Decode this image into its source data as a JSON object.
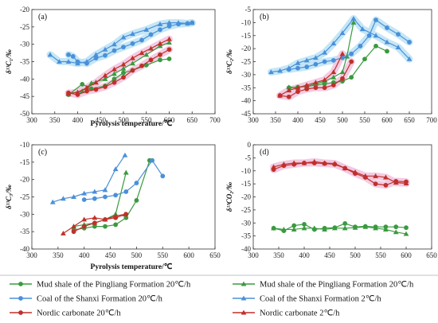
{
  "colors": {
    "green": "#3a9a3f",
    "blue": "#4a90d9",
    "red": "#c0302a",
    "blue_halo": "#bfe3f5",
    "red_halo": "#f2c6e0"
  },
  "legend": [
    {
      "label": "Mud shale of the Pingliang Formation 20℃/h",
      "color": "green",
      "marker": "circle"
    },
    {
      "label": "Mud shale of the Pingliang Formation 20℃/h",
      "color": "green",
      "marker": "triangle"
    },
    {
      "label": "Coal of the Shanxi Formation 20℃/h",
      "color": "blue",
      "marker": "circle"
    },
    {
      "label": "Coal of the Shanxi Formation 2℃/h",
      "color": "blue",
      "marker": "triangle"
    },
    {
      "label": "Nordic carbonate 20℃/h",
      "color": "red",
      "marker": "circle"
    },
    {
      "label": "Nordic carbonate 2℃/h",
      "color": "red",
      "marker": "triangle"
    }
  ],
  "chart_data": [
    {
      "type": "line",
      "panel_label": "(a)",
      "xlabel": "Pyrolysis temperature/℃",
      "ylabel": "δ¹³C₁/‰",
      "xlim": [
        300,
        700
      ],
      "ylim": [
        -50,
        -20
      ],
      "xticks": [
        300,
        350,
        400,
        450,
        500,
        550,
        600,
        650,
        700
      ],
      "yticks": [
        -50,
        -45,
        -40,
        -35,
        -30,
        -25,
        -20
      ],
      "series": [
        {
          "color": "green",
          "marker": "circle",
          "halo": false,
          "x": [
            380,
            410,
            430,
            460,
            480,
            500,
            520,
            550,
            580,
            600
          ],
          "y": [
            -44.5,
            -41.5,
            -42.8,
            -42.0,
            -40.0,
            -38.2,
            -37.5,
            -36.0,
            -34.5,
            -34.2
          ]
        },
        {
          "color": "green",
          "marker": "triangle",
          "halo": false,
          "x": [
            380,
            410,
            430,
            460,
            480,
            500,
            520,
            550,
            580,
            600
          ],
          "y": [
            -44.2,
            -43.5,
            -41.2,
            -40.0,
            -38.5,
            -37.0,
            -35.5,
            -33.0,
            -30.5,
            -29.5
          ]
        },
        {
          "color": "blue",
          "marker": "circle",
          "halo": true,
          "x": [
            380,
            390,
            400,
            420,
            440,
            460,
            480,
            500,
            520,
            540,
            560,
            580,
            600,
            620,
            640,
            650
          ],
          "y": [
            -33.0,
            -33.5,
            -35.0,
            -35.5,
            -34.0,
            -33.2,
            -31.8,
            -30.8,
            -29.8,
            -28.8,
            -27.2,
            -25.8,
            -24.8,
            -24.2,
            -24.0,
            -23.8
          ]
        },
        {
          "color": "blue",
          "marker": "triangle",
          "halo": true,
          "x": [
            340,
            360,
            380,
            400,
            420,
            440,
            460,
            480,
            500,
            520,
            550,
            580,
            600,
            620,
            640,
            650
          ],
          "y": [
            -33.0,
            -35.0,
            -35.0,
            -35.5,
            -35.0,
            -33.0,
            -31.5,
            -30.0,
            -28.0,
            -27.0,
            -25.8,
            -24.2,
            -23.8,
            -23.8,
            -24.0,
            -23.8
          ]
        },
        {
          "color": "red",
          "marker": "circle",
          "halo": true,
          "x": [
            380,
            400,
            420,
            440,
            460,
            480,
            500,
            520,
            540,
            560,
            580,
            600
          ],
          "y": [
            -44.0,
            -44.5,
            -43.5,
            -43.0,
            -42.2,
            -41.0,
            -39.5,
            -37.5,
            -36.2,
            -34.5,
            -33.0,
            -31.5
          ]
        },
        {
          "color": "red",
          "marker": "triangle",
          "halo": true,
          "x": [
            380,
            400,
            420,
            440,
            460,
            480,
            500,
            520,
            540,
            560,
            580,
            600
          ],
          "y": [
            -44.2,
            -43.8,
            -42.5,
            -41.0,
            -39.0,
            -37.2,
            -35.8,
            -34.0,
            -32.5,
            -31.2,
            -29.8,
            -28.5
          ]
        }
      ]
    },
    {
      "type": "line",
      "panel_label": "(b)",
      "xlabel": "",
      "ylabel": "δ¹³C₂/‰",
      "xlim": [
        300,
        700
      ],
      "ylim": [
        -45,
        -5
      ],
      "xticks": [
        300,
        350,
        400,
        450,
        500,
        550,
        600,
        650,
        700
      ],
      "yticks": [
        -45,
        -40,
        -35,
        -30,
        -25,
        -20,
        -15,
        -10,
        -5
      ],
      "series": [
        {
          "color": "green",
          "marker": "circle",
          "halo": false,
          "x": [
            380,
            400,
            420,
            440,
            460,
            480,
            500,
            520,
            550,
            575,
            600
          ],
          "y": [
            -35.0,
            -34.8,
            -34.5,
            -34.0,
            -33.5,
            -33.0,
            -32.5,
            -31.0,
            -24.0,
            -19.0,
            -21.0
          ]
        },
        {
          "color": "green",
          "marker": "triangle",
          "halo": false,
          "x": [
            380,
            400,
            420,
            440,
            460,
            480,
            500,
            510,
            525
          ],
          "y": [
            -34.8,
            -34.8,
            -34.5,
            -33.5,
            -32.5,
            -31.0,
            -29.0,
            -23.0,
            -10.0
          ]
        },
        {
          "color": "blue",
          "marker": "circle",
          "halo": true,
          "x": [
            380,
            400,
            420,
            440,
            460,
            480,
            500,
            520,
            540,
            560,
            575,
            600,
            625,
            650
          ],
          "y": [
            -28.0,
            -27.5,
            -27.0,
            -26.0,
            -25.0,
            -24.5,
            -23.5,
            -22.0,
            -19.0,
            -15.0,
            -9.0,
            -12.0,
            -14.5,
            -17.5
          ]
        },
        {
          "color": "blue",
          "marker": "triangle",
          "halo": true,
          "x": [
            340,
            360,
            380,
            400,
            420,
            440,
            460,
            480,
            500,
            525,
            545,
            575,
            600,
            625,
            650
          ],
          "y": [
            -29.0,
            -28.5,
            -27.5,
            -25.5,
            -24.5,
            -23.5,
            -21.5,
            -18.0,
            -14.0,
            -8.5,
            -12.5,
            -15.0,
            -17.5,
            -19.5,
            -24.0
          ]
        },
        {
          "color": "red",
          "marker": "circle",
          "halo": true,
          "x": [
            360,
            380,
            400,
            420,
            440,
            460,
            480,
            500,
            520
          ],
          "y": [
            -38.0,
            -38.5,
            -36.5,
            -35.5,
            -35.0,
            -35.0,
            -34.0,
            -31.5,
            -25.0
          ]
        },
        {
          "color": "red",
          "marker": "triangle",
          "halo": true,
          "x": [
            360,
            380,
            400,
            420,
            440,
            460,
            480,
            500
          ],
          "y": [
            -38.0,
            -36.0,
            -35.0,
            -34.0,
            -33.0,
            -32.0,
            -29.0,
            -22.0
          ]
        }
      ]
    },
    {
      "type": "line",
      "panel_label": "(c)",
      "xlabel": "Pyrolysis temperature/℃",
      "ylabel": "δ¹³C₃/‰",
      "xlim": [
        300,
        650
      ],
      "ylim": [
        -40,
        -10
      ],
      "xticks": [
        300,
        350,
        400,
        450,
        500,
        550,
        600,
        650
      ],
      "yticks": [
        -40,
        -35,
        -30,
        -25,
        -20,
        -15,
        -10
      ],
      "series": [
        {
          "color": "green",
          "marker": "circle",
          "halo": false,
          "x": [
            380,
            400,
            420,
            440,
            460,
            480,
            500,
            525
          ],
          "y": [
            -34.5,
            -34.0,
            -33.5,
            -33.5,
            -33.0,
            -31.0,
            -26.0,
            -14.5
          ]
        },
        {
          "color": "green",
          "marker": "triangle",
          "halo": false,
          "x": [
            380,
            400,
            420,
            440,
            460,
            480
          ],
          "y": [
            -33.5,
            -33.0,
            -32.5,
            -31.5,
            -30.0,
            -18.0
          ]
        },
        {
          "color": "blue",
          "marker": "circle",
          "halo": false,
          "x": [
            400,
            420,
            440,
            460,
            480,
            500,
            530,
            550
          ],
          "y": [
            -25.8,
            -25.5,
            -25.0,
            -24.5,
            -23.5,
            -21.0,
            -14.5,
            -19.0
          ]
        },
        {
          "color": "blue",
          "marker": "triangle",
          "halo": false,
          "x": [
            340,
            360,
            380,
            400,
            420,
            440,
            460,
            478
          ],
          "y": [
            -26.5,
            -25.5,
            -25.0,
            -24.0,
            -23.5,
            -23.0,
            -17.0,
            -13.0
          ]
        },
        {
          "color": "red",
          "marker": "circle",
          "halo": false,
          "x": [
            380,
            400,
            420,
            440,
            460,
            480
          ],
          "y": [
            -35.0,
            -33.5,
            -32.5,
            -31.5,
            -31.0,
            -30.0
          ]
        },
        {
          "color": "red",
          "marker": "triangle",
          "halo": false,
          "x": [
            360,
            380,
            400,
            420,
            440,
            460,
            478
          ],
          "y": [
            -35.5,
            -33.5,
            -31.5,
            -31.0,
            -31.5,
            -30.5,
            -30.0
          ]
        }
      ]
    },
    {
      "type": "line",
      "panel_label": "(d)",
      "xlabel": "Pyrolysis temperature/℃",
      "ylabel": "δ¹³CO₂/‰",
      "xlim": [
        300,
        650
      ],
      "ylim": [
        -40,
        0
      ],
      "xticks": [
        300,
        350,
        400,
        450,
        500,
        550,
        600,
        650
      ],
      "yticks": [
        -40,
        -35,
        -30,
        -25,
        -20,
        -15,
        -10,
        -5,
        0
      ],
      "series": [
        {
          "color": "green",
          "marker": "circle",
          "halo": false,
          "x": [
            340,
            360,
            380,
            400,
            420,
            440,
            460,
            480,
            500,
            520,
            540,
            560,
            580,
            600
          ],
          "y": [
            -32.0,
            -33.0,
            -31.0,
            -30.5,
            -32.5,
            -32.0,
            -31.8,
            -30.2,
            -31.5,
            -31.3,
            -31.5,
            -31.5,
            -31.5,
            -31.8
          ]
        },
        {
          "color": "green",
          "marker": "triangle",
          "halo": false,
          "x": [
            340,
            360,
            380,
            400,
            420,
            440,
            460,
            480,
            500,
            520,
            540,
            560,
            580,
            600
          ],
          "y": [
            -32.0,
            -32.5,
            -32.5,
            -32.0,
            -32.0,
            -32.5,
            -32.0,
            -32.0,
            -31.8,
            -31.5,
            -32.0,
            -32.5,
            -33.5,
            -34.2
          ]
        },
        {
          "color": "red",
          "marker": "circle",
          "halo": true,
          "x": [
            340,
            360,
            380,
            400,
            420,
            440,
            460,
            480,
            500,
            520,
            540,
            560,
            580,
            600
          ],
          "y": [
            -9.5,
            -8.0,
            -7.5,
            -7.0,
            -7.0,
            -7.2,
            -7.5,
            -9.0,
            -11.0,
            -12.5,
            -15.0,
            -15.5,
            -14.0,
            -14.2
          ]
        },
        {
          "color": "red",
          "marker": "triangle",
          "halo": true,
          "x": [
            340,
            360,
            380,
            400,
            420,
            440,
            460,
            480,
            500,
            520,
            540,
            560,
            580,
            600
          ],
          "y": [
            -8.5,
            -7.5,
            -7.0,
            -7.0,
            -6.5,
            -7.0,
            -7.2,
            -9.0,
            -10.5,
            -12.0,
            -12.0,
            -12.5,
            -14.5,
            -14.8
          ]
        }
      ]
    }
  ]
}
